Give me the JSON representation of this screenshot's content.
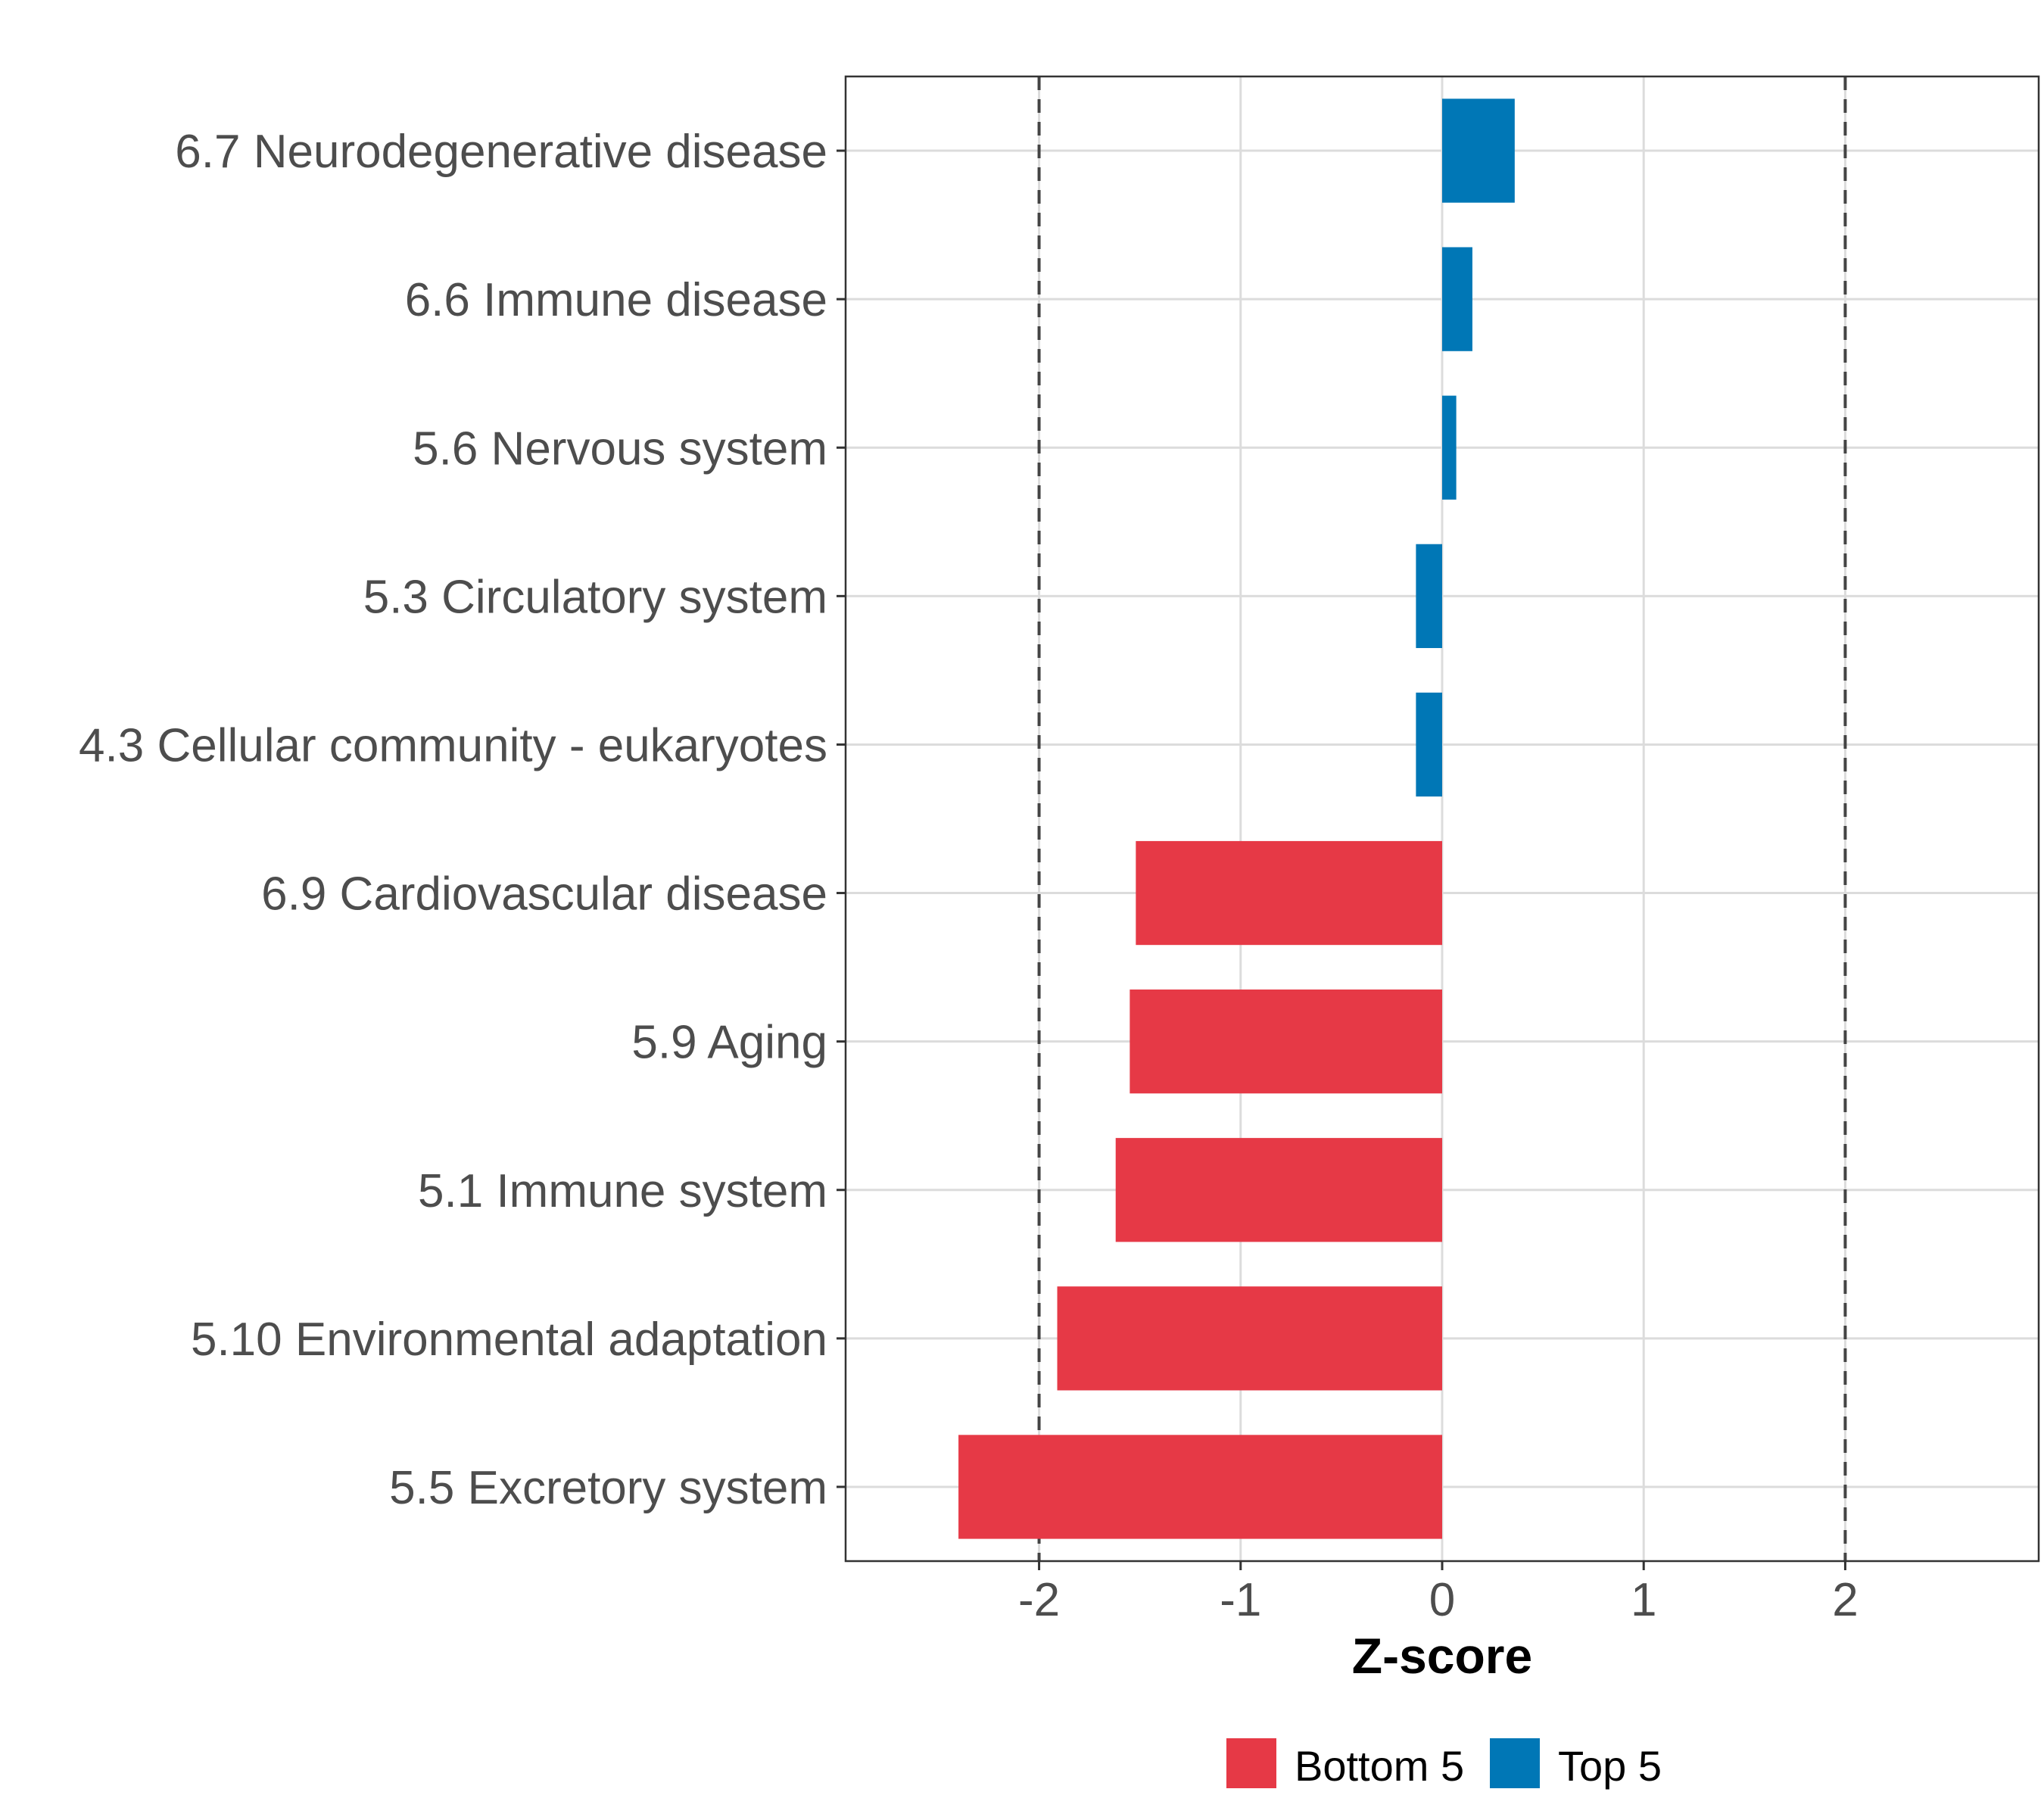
{
  "chart_data": {
    "type": "bar",
    "orientation": "horizontal",
    "title": "",
    "xlabel": "Z-score",
    "ylabel": "",
    "xlim": [
      -2.96,
      2.96
    ],
    "x_ticks": [
      -2,
      -1,
      0,
      1,
      2
    ],
    "x_tick_labels": [
      "-2",
      "-1",
      "0",
      "1",
      "2"
    ],
    "reference_lines": [
      -2,
      2
    ],
    "grid": true,
    "legend_position": "bottom",
    "categories": [
      "6.7 Neurodegenerative disease",
      "6.6 Immune disease",
      "5.6 Nervous system",
      "5.3 Circulatory system",
      "4.3 Cellular community - eukaryotes",
      "6.9 Cardiovascular disease",
      "5.9 Aging",
      "5.1 Immune system",
      "5.10 Environmental adaptation",
      "5.5 Excretory system"
    ],
    "values": [
      0.36,
      0.15,
      0.07,
      -0.13,
      -0.13,
      -1.52,
      -1.55,
      -1.62,
      -1.91,
      -2.4
    ],
    "groups": [
      "Top 5",
      "Top 5",
      "Top 5",
      "Top 5",
      "Top 5",
      "Bottom 5",
      "Bottom 5",
      "Bottom 5",
      "Bottom 5",
      "Bottom 5"
    ],
    "legend": [
      {
        "name": "Bottom 5",
        "color": "#E63946"
      },
      {
        "name": "Top 5",
        "color": "#0077B6"
      }
    ]
  }
}
